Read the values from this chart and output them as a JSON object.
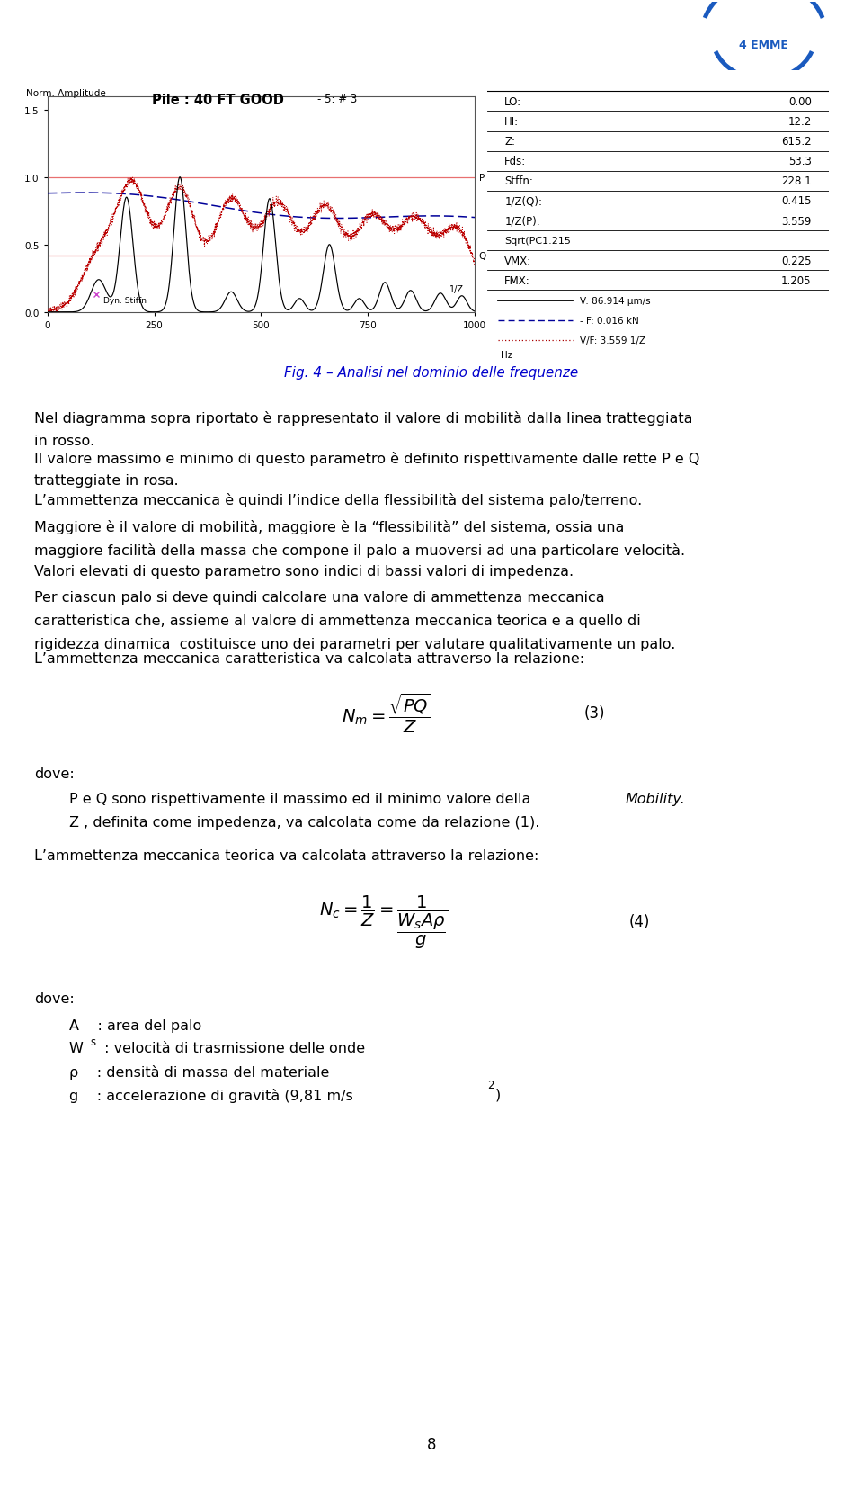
{
  "page_bg": "#ffffff",
  "fig_caption": "Fig. 4 – Analisi nel dominio delle frequenze",
  "chart_title": "Pile : 40 FT GOOD",
  "chart_subtitle": "- 5: # 3",
  "chart_ylabel": "Norm. Amplitude",
  "chart_xlabel": "Hz",
  "chart_xlim": [
    0,
    1000
  ],
  "chart_ylim": [
    0.0,
    1.6
  ],
  "chart_yticks": [
    0.0,
    0.5,
    1.0,
    1.5
  ],
  "chart_xticks": [
    0,
    250,
    500,
    750,
    1000
  ],
  "P_level": 1.0,
  "Q_level": 0.415,
  "table_data": [
    [
      "LO:",
      "0.00"
    ],
    [
      "HI:",
      "12.2"
    ],
    [
      "Z:",
      "615.2"
    ],
    [
      "Fds:",
      "53.3"
    ],
    [
      "Stffn:",
      "228.1"
    ],
    [
      "1/Z(Q):",
      "0.415"
    ],
    [
      "1/Z(P):",
      "3.559"
    ],
    [
      "Sqrt(PC1.215",
      ""
    ],
    [
      "VMX:",
      "0.225"
    ],
    [
      "FMX:",
      "1.205"
    ]
  ],
  "legend_items": [
    {
      "label": "V: 86.914 μm/s",
      "color": "#000000",
      "linestyle": "-"
    },
    {
      "label": "- F: 0.016 kN",
      "color": "#000080",
      "linestyle": "--"
    },
    {
      "label": "V/F: 3.559 1/Z",
      "color": "#aa0000",
      "linestyle": ":"
    }
  ],
  "border_color": "#0000aa",
  "logo_color": "#1a5abf"
}
